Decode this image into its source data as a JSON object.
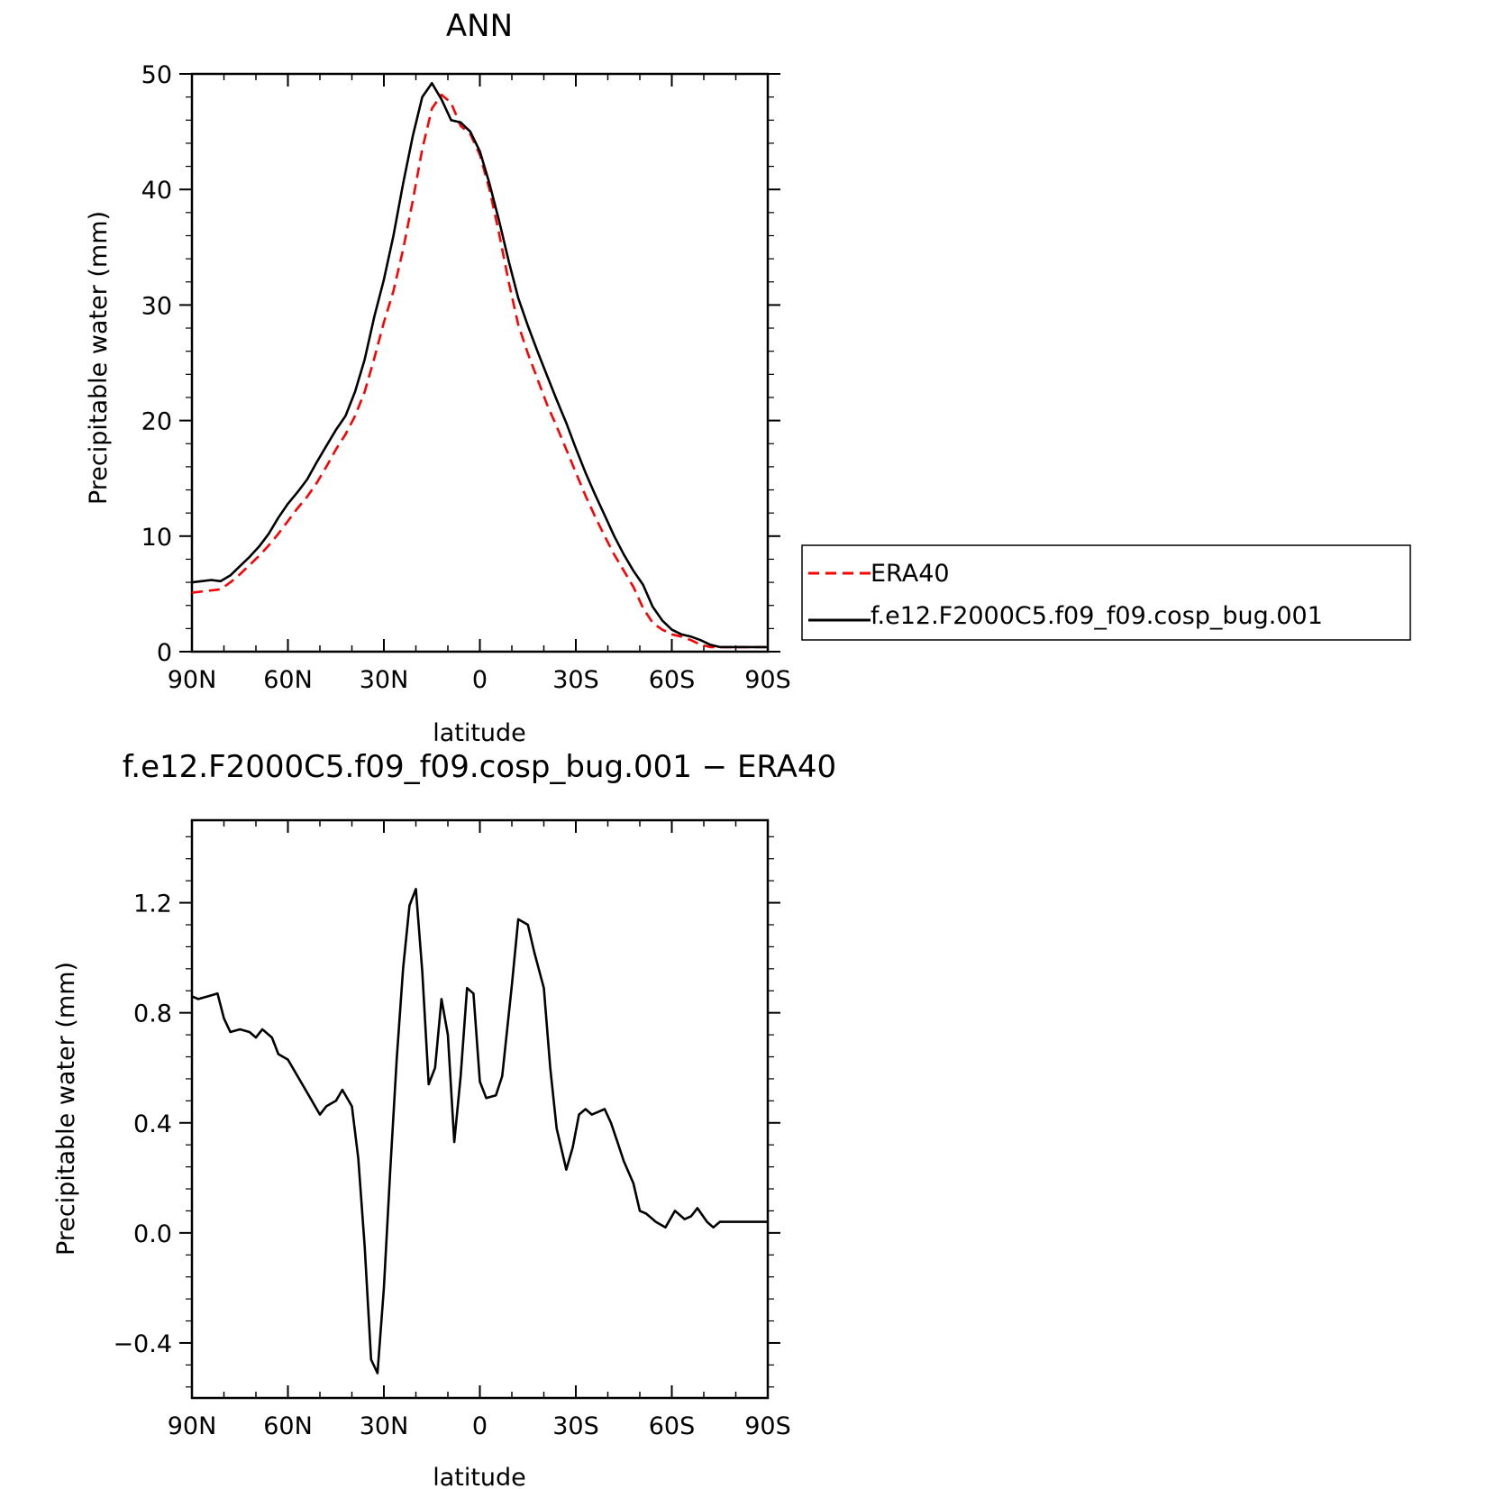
{
  "chart_data": [
    {
      "type": "line",
      "title": "ANN",
      "xlabel": "latitude",
      "ylabel": "Precipitable water (mm)",
      "xlim": [
        90,
        -90
      ],
      "ylim": [
        0,
        50
      ],
      "xticks": [
        {
          "v": 90,
          "label": "90N"
        },
        {
          "v": 60,
          "label": "60N"
        },
        {
          "v": 30,
          "label": "30N"
        },
        {
          "v": 0,
          "label": "0"
        },
        {
          "v": -30,
          "label": "30S"
        },
        {
          "v": -60,
          "label": "60S"
        },
        {
          "v": -90,
          "label": "90S"
        }
      ],
      "yticks": [
        {
          "v": 0,
          "label": "0"
        },
        {
          "v": 10,
          "label": "10"
        },
        {
          "v": 20,
          "label": "20"
        },
        {
          "v": 30,
          "label": "30"
        },
        {
          "v": 40,
          "label": "40"
        },
        {
          "v": 50,
          "label": "50"
        }
      ],
      "legend": "right",
      "series": [
        {
          "name": "ERA40",
          "color": "#ff0000",
          "dash": true,
          "x": [
            90,
            87,
            84,
            81,
            78,
            75,
            72,
            69,
            66,
            63,
            60,
            57,
            54,
            51,
            48,
            45,
            42,
            39,
            36,
            33,
            30,
            27,
            24,
            21,
            18,
            15,
            12,
            9,
            6,
            3,
            0,
            -3,
            -6,
            -9,
            -12,
            -15,
            -18,
            -21,
            -24,
            -27,
            -30,
            -33,
            -36,
            -39,
            -42,
            -45,
            -48,
            -51,
            -54,
            -57,
            -60,
            -63,
            -66,
            -69,
            -72,
            -75,
            -78,
            -81,
            -84,
            -87,
            -90
          ],
          "y": [
            5.1,
            5.2,
            5.3,
            5.4,
            6.0,
            6.7,
            7.5,
            8.3,
            9.2,
            10.2,
            11.3,
            12.4,
            13.4,
            14.6,
            16.0,
            17.5,
            18.8,
            20.4,
            22.5,
            25.4,
            28.5,
            31.2,
            34.8,
            39.0,
            43.5,
            47.0,
            48.2,
            47.5,
            45.5,
            44.8,
            43.0,
            40.0,
            36.2,
            32.0,
            28.3,
            25.8,
            23.6,
            21.4,
            19.5,
            17.5,
            15.5,
            13.5,
            11.7,
            10.0,
            8.4,
            7.0,
            5.6,
            3.8,
            2.5,
            1.9,
            1.5,
            1.3,
            1.0,
            0.6,
            0.4,
            0.4,
            0.4,
            0.4,
            0.4,
            0.4,
            0.4
          ]
        },
        {
          "name": "f.e12.F2000C5.f09_f09.cosp_bug.001",
          "color": "#000000",
          "dash": false,
          "x": [
            90,
            87,
            84,
            81,
            78,
            75,
            72,
            69,
            66,
            63,
            60,
            57,
            54,
            51,
            48,
            45,
            42,
            39,
            36,
            33,
            30,
            27,
            24,
            21,
            18,
            15,
            12,
            9,
            6,
            3,
            0,
            -3,
            -6,
            -9,
            -12,
            -15,
            -18,
            -21,
            -24,
            -27,
            -30,
            -33,
            -36,
            -39,
            -42,
            -45,
            -48,
            -51,
            -54,
            -57,
            -60,
            -63,
            -66,
            -69,
            -72,
            -75,
            -78,
            -81,
            -84,
            -87,
            -90
          ],
          "y": [
            6.0,
            6.1,
            6.2,
            6.1,
            6.6,
            7.4,
            8.2,
            9.1,
            10.2,
            11.6,
            12.8,
            13.8,
            14.9,
            16.4,
            17.8,
            19.2,
            20.4,
            22.5,
            25.3,
            29.0,
            32.2,
            36.0,
            40.5,
            44.6,
            48.0,
            49.2,
            47.8,
            46.0,
            45.8,
            45.0,
            43.3,
            40.5,
            37.3,
            33.8,
            30.6,
            28.2,
            26.0,
            23.9,
            21.8,
            19.8,
            17.6,
            15.5,
            13.6,
            11.8,
            10.0,
            8.4,
            7.0,
            5.8,
            3.9,
            2.7,
            1.9,
            1.5,
            1.3,
            1.0,
            0.6,
            0.4,
            0.4,
            0.4,
            0.4,
            0.4,
            0.4
          ]
        }
      ]
    },
    {
      "type": "line",
      "title": "f.e12.F2000C5.f09_f09.cosp_bug.001 − ERA40",
      "xlabel": "latitude",
      "ylabel": "Precipitable water (mm)",
      "xlim": [
        90,
        -90
      ],
      "ylim": [
        -0.6,
        1.5
      ],
      "xticks": [
        {
          "v": 90,
          "label": "90N"
        },
        {
          "v": 60,
          "label": "60N"
        },
        {
          "v": 30,
          "label": "30N"
        },
        {
          "v": 0,
          "label": "0"
        },
        {
          "v": -30,
          "label": "30S"
        },
        {
          "v": -60,
          "label": "60S"
        },
        {
          "v": -90,
          "label": "90S"
        }
      ],
      "yticks": [
        {
          "v": -0.4,
          "label": "−0.4"
        },
        {
          "v": 0.0,
          "label": "0.0"
        },
        {
          "v": 0.4,
          "label": "0.4"
        },
        {
          "v": 0.8,
          "label": "0.8"
        },
        {
          "v": 1.2,
          "label": "1.2"
        }
      ],
      "series": [
        {
          "color": "#000000",
          "x": [
            90,
            88,
            85,
            82,
            80,
            78,
            75,
            72,
            70,
            68,
            65,
            63,
            60,
            58,
            55,
            53,
            50,
            48,
            45,
            43,
            40,
            38,
            36,
            34,
            32,
            30,
            28,
            26,
            24,
            22,
            20,
            18,
            16,
            14,
            12,
            10,
            8,
            6,
            4,
            2,
            0,
            -2,
            -5,
            -7,
            -10,
            -12,
            -15,
            -17,
            -20,
            -22,
            -24,
            -27,
            -29,
            -31,
            -33,
            -35,
            -37,
            -39,
            -41,
            -43,
            -45,
            -48,
            -50,
            -52,
            -55,
            -58,
            -61,
            -64,
            -66,
            -68,
            -71,
            -73,
            -75,
            -78,
            -80,
            -82,
            -85,
            -88,
            -90
          ],
          "y": [
            0.86,
            0.85,
            0.86,
            0.87,
            0.78,
            0.73,
            0.74,
            0.73,
            0.71,
            0.74,
            0.71,
            0.65,
            0.63,
            0.59,
            0.53,
            0.49,
            0.43,
            0.46,
            0.48,
            0.52,
            0.46,
            0.27,
            -0.05,
            -0.46,
            -0.51,
            -0.2,
            0.23,
            0.63,
            0.96,
            1.19,
            1.25,
            0.95,
            0.54,
            0.6,
            0.85,
            0.72,
            0.33,
            0.57,
            0.89,
            0.87,
            0.55,
            0.49,
            0.5,
            0.57,
            0.9,
            1.14,
            1.12,
            1.02,
            0.89,
            0.6,
            0.38,
            0.23,
            0.31,
            0.43,
            0.45,
            0.43,
            0.44,
            0.45,
            0.4,
            0.33,
            0.26,
            0.18,
            0.08,
            0.07,
            0.04,
            0.02,
            0.08,
            0.05,
            0.06,
            0.09,
            0.04,
            0.02,
            0.04,
            0.04,
            0.04,
            0.04,
            0.04,
            0.04,
            0.04
          ]
        }
      ]
    }
  ]
}
